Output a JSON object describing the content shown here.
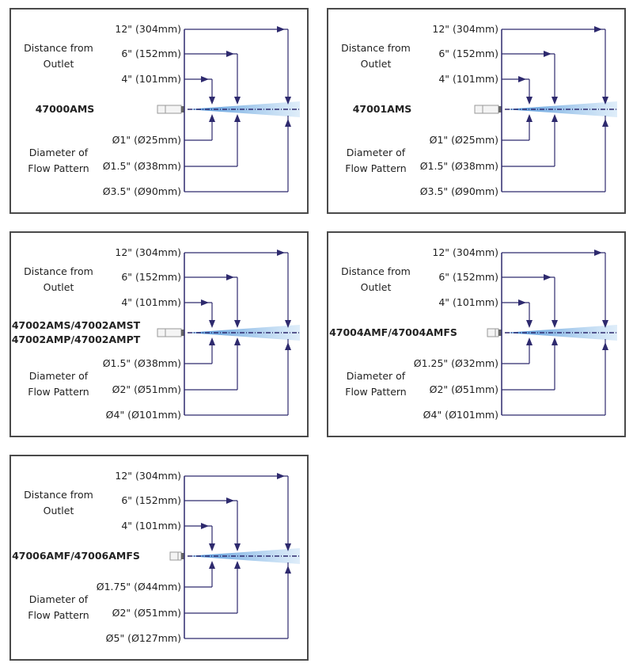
{
  "left_labels": {
    "distance": [
      "Distance from",
      "Outlet"
    ],
    "diameter": [
      "Diameter of",
      "Flow Pattern"
    ]
  },
  "colors": {
    "line": "#2e2a6e",
    "spray": "#7fb8e8",
    "border": "#4a4a4a"
  },
  "panels": [
    {
      "model": [
        "47000AMS"
      ],
      "distances": [
        "12\" (304mm)",
        "6\" (152mm)",
        "4\" (101mm)"
      ],
      "diameters": [
        "Ø1\" (Ø25mm)",
        "Ø1.5\" (Ø38mm)",
        "Ø3.5\" (Ø90mm)"
      ]
    },
    {
      "model": [
        "47001AMS"
      ],
      "distances": [
        "12\" (304mm)",
        "6\" (152mm)",
        "4\" (101mm)"
      ],
      "diameters": [
        "Ø1\" (Ø25mm)",
        "Ø1.5\" (Ø38mm)",
        "Ø3.5\" (Ø90mm)"
      ]
    },
    {
      "model": [
        "47002AMS/47002AMST",
        "47002AMP/47002AMPT"
      ],
      "distances": [
        "12\" (304mm)",
        "6\" (152mm)",
        "4\" (101mm)"
      ],
      "diameters": [
        "Ø1.5\" (Ø38mm)",
        "Ø2\" (Ø51mm)",
        "Ø4\" (Ø101mm)"
      ]
    },
    {
      "model": [
        "47004AMF/47004AMFS"
      ],
      "distances": [
        "12\" (304mm)",
        "6\" (152mm)",
        "4\" (101mm)"
      ],
      "diameters": [
        "Ø1.25\" (Ø32mm)",
        "Ø2\" (Ø51mm)",
        "Ø4\" (Ø101mm)"
      ]
    },
    {
      "model": [
        "47006AMF/47006AMFS"
      ],
      "distances": [
        "12\" (304mm)",
        "6\" (152mm)",
        "4\" (101mm)"
      ],
      "diameters": [
        "Ø1.75\" (Ø44mm)",
        "Ø2\" (Ø51mm)",
        "Ø5\" (Ø127mm)"
      ]
    }
  ]
}
